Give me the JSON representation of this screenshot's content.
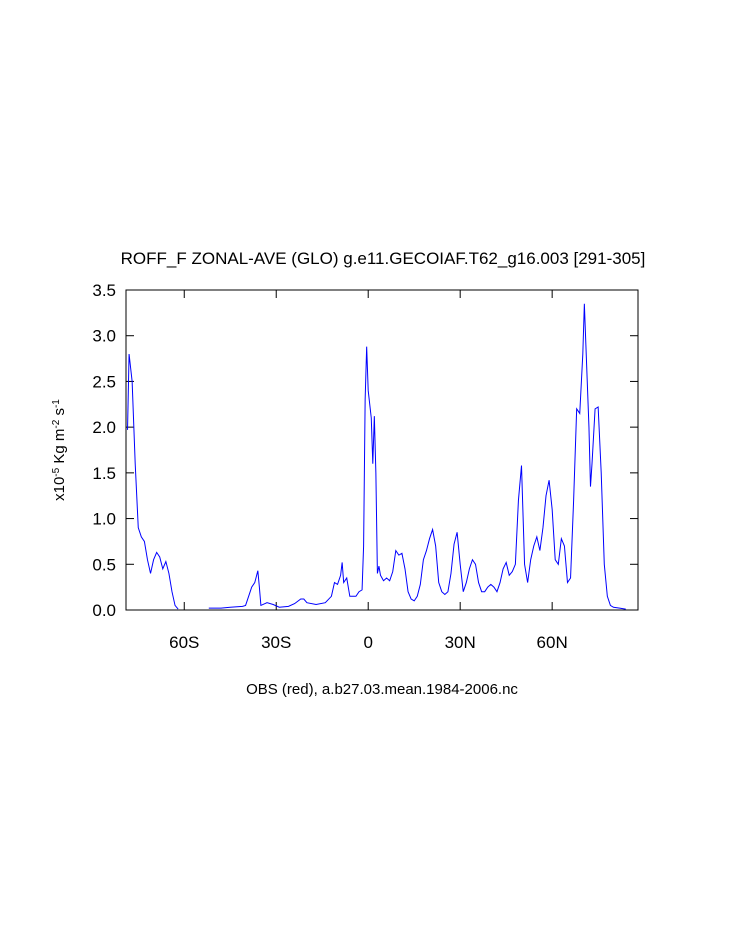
{
  "chart_data": {
    "type": "line",
    "title": "ROFF_F ZONAL-AVE (GLO) g.e11.GECOIAF.T62_g16.003 [291-305]",
    "x_label": "OBS (red), a.b27.03.mean.1984-2006.nc",
    "y_label": [
      "x10",
      "-5",
      " Kg m",
      "-2",
      " s",
      "-1"
    ],
    "xlim": [
      -79,
      88
    ],
    "ylim": [
      0,
      3.5
    ],
    "xticks": [
      {
        "value": -60,
        "label": "60S"
      },
      {
        "value": -30,
        "label": "30S"
      },
      0,
      {
        "value": 30,
        "label": "30N"
      },
      {
        "value": 60,
        "label": "60N"
      }
    ],
    "yticks": [
      {
        "value": 0,
        "label": "0.0"
      },
      0.5,
      {
        "value": 1,
        "label": "1.0"
      },
      1.5,
      {
        "value": 2,
        "label": "2.0"
      },
      2.5,
      {
        "value": 3,
        "label": "3.0"
      },
      3.5
    ],
    "color": "#0000ff",
    "x": [
      -78.5,
      -78,
      -77,
      -76,
      -75,
      -74,
      -73,
      -72,
      -71,
      -70,
      -69,
      -68,
      -67,
      -66,
      -65,
      -64,
      -63,
      -62,
      -57,
      -52,
      -48,
      -45,
      -41,
      -40,
      -39,
      -38,
      -37,
      -36,
      -35.5,
      -35,
      -33,
      -31,
      -29,
      -26,
      -24,
      -22,
      -21,
      -20,
      -17,
      -14,
      -12,
      -11,
      -10,
      -9,
      -8.5,
      -8,
      -7,
      -6,
      -4,
      -3,
      -2,
      -1.5,
      -1,
      -0.5,
      0,
      1,
      1.5,
      2,
      2.5,
      3,
      3.5,
      4,
      5,
      6,
      7,
      8,
      9,
      10,
      11,
      12,
      13,
      14,
      15,
      16,
      17,
      18,
      19,
      20,
      21,
      22,
      23,
      24,
      25,
      26,
      27,
      28,
      29,
      30,
      31,
      32,
      33,
      34,
      35,
      36,
      37,
      38,
      39,
      40,
      41,
      42,
      43,
      44,
      45,
      46,
      47,
      48,
      49,
      50,
      51,
      52,
      53,
      54,
      55,
      56,
      57,
      58,
      59,
      60,
      61,
      62,
      63,
      64,
      65,
      66,
      67,
      68,
      69,
      70,
      70.5,
      71,
      72,
      72.5,
      73,
      74,
      75,
      76,
      77,
      78,
      79,
      80,
      82,
      84
    ],
    "values": [
      1.97,
      2.8,
      2.5,
      1.6,
      0.9,
      0.8,
      0.75,
      0.55,
      0.4,
      0.55,
      0.63,
      0.58,
      0.45,
      0.53,
      0.4,
      0.2,
      0.05,
      0.01,
      null,
      0.02,
      0.02,
      0.03,
      0.04,
      0.05,
      0.15,
      0.25,
      0.3,
      0.43,
      0.25,
      0.05,
      0.08,
      0.06,
      0.03,
      0.04,
      0.07,
      0.12,
      0.12,
      0.08,
      0.06,
      0.08,
      0.15,
      0.3,
      0.28,
      0.38,
      0.52,
      0.3,
      0.35,
      0.15,
      0.15,
      0.2,
      0.22,
      0.7,
      2.3,
      2.88,
      2.4,
      2.1,
      1.6,
      2.12,
      1.5,
      0.4,
      0.48,
      0.38,
      0.32,
      0.35,
      0.32,
      0.42,
      0.65,
      0.6,
      0.62,
      0.45,
      0.2,
      0.12,
      0.1,
      0.15,
      0.28,
      0.55,
      0.65,
      0.78,
      0.88,
      0.7,
      0.3,
      0.2,
      0.17,
      0.2,
      0.4,
      0.72,
      0.85,
      0.5,
      0.2,
      0.3,
      0.45,
      0.55,
      0.5,
      0.3,
      0.2,
      0.2,
      0.25,
      0.28,
      0.25,
      0.2,
      0.3,
      0.45,
      0.52,
      0.38,
      0.42,
      0.5,
      1.2,
      1.58,
      0.5,
      0.3,
      0.55,
      0.7,
      0.8,
      0.65,
      0.9,
      1.25,
      1.42,
      1.1,
      0.55,
      0.5,
      0.78,
      0.7,
      0.3,
      0.35,
      1.2,
      2.2,
      2.15,
      2.8,
      3.35,
      2.9,
      2.0,
      1.35,
      1.6,
      2.2,
      2.22,
      1.5,
      0.5,
      0.15,
      0.05,
      0.03,
      0.02,
      0.01
    ]
  }
}
